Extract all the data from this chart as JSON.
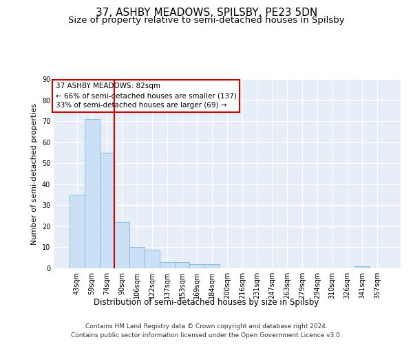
{
  "title": "37, ASHBY MEADOWS, SPILSBY, PE23 5DN",
  "subtitle": "Size of property relative to semi-detached houses in Spilsby",
  "xlabel": "Distribution of semi-detached houses by size in Spilsby",
  "ylabel": "Number of semi-detached properties",
  "categories": [
    "43sqm",
    "59sqm",
    "74sqm",
    "90sqm",
    "106sqm",
    "122sqm",
    "137sqm",
    "153sqm",
    "169sqm",
    "184sqm",
    "200sqm",
    "216sqm",
    "231sqm",
    "247sqm",
    "263sqm",
    "279sqm",
    "294sqm",
    "310sqm",
    "326sqm",
    "341sqm",
    "357sqm"
  ],
  "values": [
    35,
    71,
    55,
    22,
    10,
    9,
    3,
    3,
    2,
    2,
    0,
    0,
    0,
    0,
    0,
    0,
    0,
    0,
    0,
    1,
    0
  ],
  "bar_color": "#cce0f5",
  "bar_edge_color": "#7ab8d9",
  "vline_x": 2.5,
  "vline_color": "#cc0000",
  "annotation_text": "37 ASHBY MEADOWS: 82sqm\n← 66% of semi-detached houses are smaller (137)\n33% of semi-detached houses are larger (69) →",
  "annotation_box_color": "white",
  "annotation_box_edge": "#cc0000",
  "ylim": [
    0,
    90
  ],
  "yticks": [
    0,
    10,
    20,
    30,
    40,
    50,
    60,
    70,
    80,
    90
  ],
  "background_color": "#e8eef8",
  "grid_color": "white",
  "footer": "Contains HM Land Registry data © Crown copyright and database right 2024.\nContains public sector information licensed under the Open Government Licence v3.0.",
  "title_fontsize": 11,
  "subtitle_fontsize": 9.5,
  "xlabel_fontsize": 8.5,
  "ylabel_fontsize": 8,
  "tick_fontsize": 7,
  "footer_fontsize": 6.5,
  "annotation_fontsize": 7.5
}
